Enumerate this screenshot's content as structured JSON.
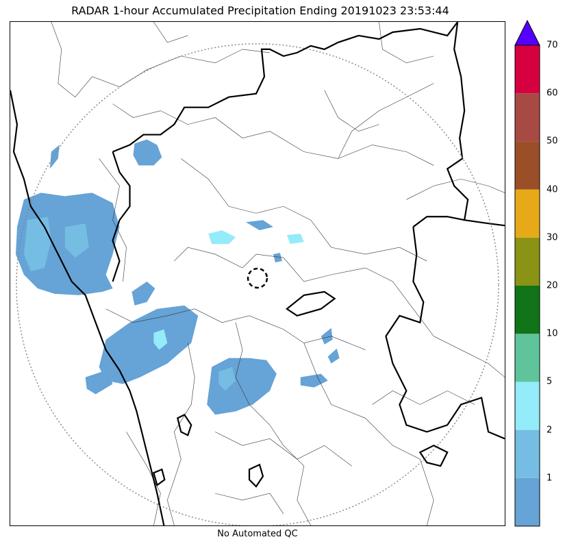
{
  "title": "RADAR 1-hour Accumulated Precipitation Ending 20191023 23:53:44",
  "footer": "No Automated QC",
  "colorbar": {
    "extend_color": "#5500ff",
    "bins": [
      {
        "color": "#66a3d6"
      },
      {
        "color": "#75bde3"
      },
      {
        "color": "#94ebfa"
      },
      {
        "color": "#5fc49c"
      },
      {
        "color": "#117418"
      },
      {
        "color": "#8b9316"
      },
      {
        "color": "#e8a919"
      },
      {
        "color": "#9b4f28"
      },
      {
        "color": "#a84a44"
      },
      {
        "color": "#d60040"
      }
    ],
    "tick_labels": [
      "1",
      "2",
      "5",
      "10",
      "20",
      "30",
      "40",
      "50",
      "60",
      "70"
    ]
  },
  "map": {
    "range_ring": "dotted",
    "radar_site_marker": "dashed-circle",
    "precip_colors": [
      "#66a3d6",
      "#75bde3",
      "#94ebfa"
    ]
  }
}
